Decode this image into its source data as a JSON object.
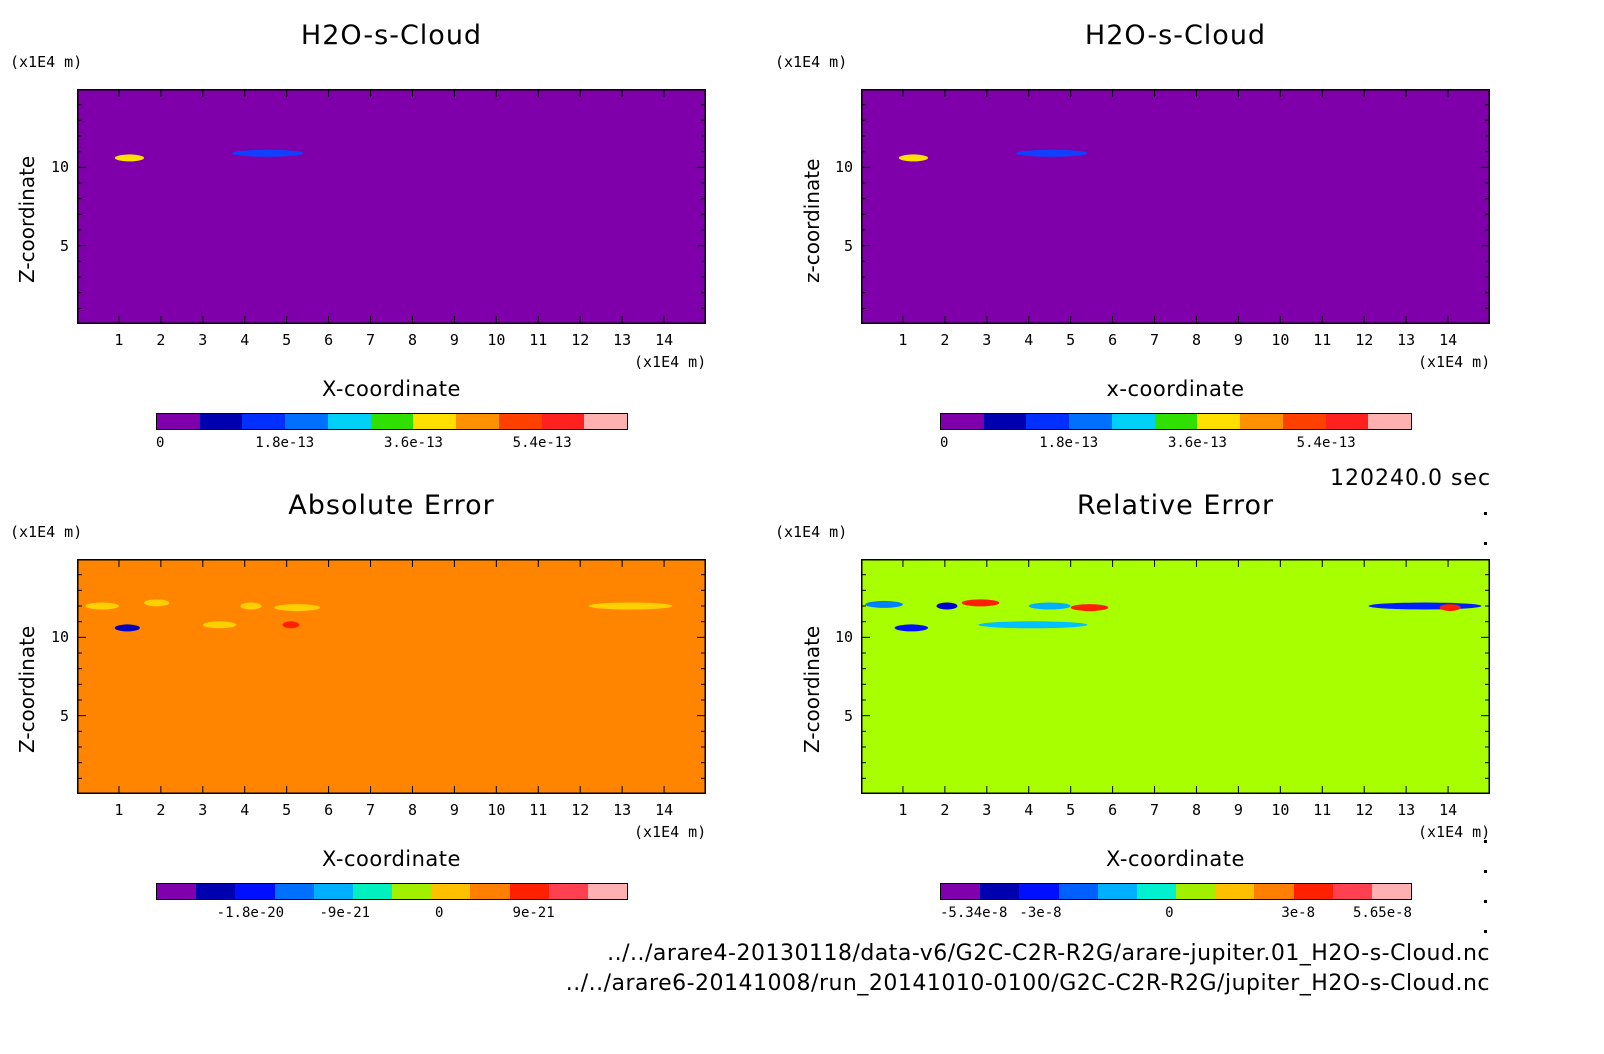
{
  "time_label": "120240.0 sec",
  "files": [
    "../../arare4-20130118/data-v6/G2C-C2R-R2G/arare-jupiter.01_H2O-s-Cloud.nc",
    "../../arare6-20141008/run_20141010-0100/G2C-C2R-R2G/jupiter_H2O-s-Cloud.nc"
  ],
  "chart_data": [
    {
      "type": "heatmap",
      "title": "H2O-s-Cloud",
      "xlabel": "X-coordinate",
      "ylabel": "Z-coordinate",
      "x_unit": "(x1E4 m)",
      "y_unit": "(x1E4 m)",
      "xlim": [
        0,
        15
      ],
      "ylim": [
        0,
        15
      ],
      "xticks": [
        "1",
        "2",
        "3",
        "4",
        "5",
        "6",
        "7",
        "8",
        "9",
        "10",
        "11",
        "12",
        "13",
        "14"
      ],
      "yticks": [
        "5",
        "10"
      ],
      "background_color": "#7f00aa",
      "features": [
        {
          "x_range": [
            0.9,
            1.6
          ],
          "z": 10.6,
          "peak_color": "#ffe000"
        },
        {
          "x_range": [
            3.7,
            5.4
          ],
          "z": 10.9,
          "peak_color": "#1040ff"
        }
      ],
      "colorbar": {
        "colors": [
          "#7f00aa",
          "#0000b0",
          "#0030ff",
          "#0070ff",
          "#00d0f8",
          "#30e000",
          "#ffe000",
          "#ff9000",
          "#ff4000",
          "#ff2020",
          "#ffb0b0"
        ],
        "labels": [
          "0",
          "1.8e-13",
          "3.6e-13",
          "5.4e-13"
        ],
        "label_values": [
          0,
          1.8e-13,
          3.6e-13,
          5.4e-13
        ],
        "range": [
          0,
          6.6e-13
        ]
      }
    },
    {
      "type": "heatmap",
      "title": "H2O-s-Cloud",
      "xlabel": "x-coordinate",
      "ylabel": "z-coordinate",
      "x_unit": "(x1E4 m)",
      "y_unit": "(x1E4 m)",
      "xlim": [
        0,
        15
      ],
      "ylim": [
        0,
        15
      ],
      "xticks": [
        "1",
        "2",
        "3",
        "4",
        "5",
        "6",
        "7",
        "8",
        "9",
        "10",
        "11",
        "12",
        "13",
        "14"
      ],
      "yticks": [
        "5",
        "10"
      ],
      "background_color": "#7f00aa",
      "features": [
        {
          "x_range": [
            0.9,
            1.6
          ],
          "z": 10.6,
          "peak_color": "#ffe000"
        },
        {
          "x_range": [
            3.7,
            5.4
          ],
          "z": 10.9,
          "peak_color": "#1040ff"
        }
      ],
      "colorbar": {
        "colors": [
          "#7f00aa",
          "#0000b0",
          "#0030ff",
          "#0070ff",
          "#00d0f8",
          "#30e000",
          "#ffe000",
          "#ff9000",
          "#ff4000",
          "#ff2020",
          "#ffb0b0"
        ],
        "labels": [
          "0",
          "1.8e-13",
          "3.6e-13",
          "5.4e-13"
        ],
        "label_values": [
          0,
          1.8e-13,
          3.6e-13,
          5.4e-13
        ],
        "range": [
          0,
          6.6e-13
        ]
      }
    },
    {
      "type": "heatmap",
      "title": "Absolute Error",
      "xlabel": "X-coordinate",
      "ylabel": "Z-coordinate",
      "x_unit": "(x1E4 m)",
      "y_unit": "(x1E4 m)",
      "xlim": [
        0,
        15
      ],
      "ylim": [
        0,
        15
      ],
      "xticks": [
        "1",
        "2",
        "3",
        "4",
        "5",
        "6",
        "7",
        "8",
        "9",
        "10",
        "11",
        "12",
        "13",
        "14"
      ],
      "yticks": [
        "5",
        "10"
      ],
      "background_color": "#ff8400",
      "features": [
        {
          "x_range": [
            0.2,
            1.0
          ],
          "z": 12.0,
          "peak_color": "#ffd000"
        },
        {
          "x_range": [
            1.6,
            2.2
          ],
          "z": 12.2,
          "peak_color": "#ffd000"
        },
        {
          "x_range": [
            3.9,
            4.4
          ],
          "z": 12.0,
          "peak_color": "#ffd000"
        },
        {
          "x_range": [
            4.7,
            5.8
          ],
          "z": 11.9,
          "peak_color": "#ffd000"
        },
        {
          "x_range": [
            0.9,
            1.5
          ],
          "z": 10.6,
          "peak_color": "#0000c0"
        },
        {
          "x_range": [
            3.0,
            3.8
          ],
          "z": 10.8,
          "peak_color": "#ffd000"
        },
        {
          "x_range": [
            12.2,
            14.2
          ],
          "z": 12.0,
          "peak_color": "#ffd000"
        },
        {
          "x_range": [
            4.9,
            5.3
          ],
          "z": 10.8,
          "peak_color": "#ff2000"
        }
      ],
      "colorbar": {
        "colors": [
          "#7f00aa",
          "#0000b0",
          "#0010ff",
          "#0070ff",
          "#00b0ff",
          "#00f0c0",
          "#a0f000",
          "#ffc000",
          "#ff8000",
          "#ff2000",
          "#ff4050",
          "#ffb0b0"
        ],
        "labels": [
          "-1.8e-20",
          "-9e-21",
          "0",
          "9e-21"
        ],
        "label_values": [
          -1.8e-20,
          -9e-21,
          0,
          9e-21
        ],
        "range": [
          -2.7e-20,
          1.8e-20
        ]
      }
    },
    {
      "type": "heatmap",
      "title": "Relative Error",
      "xlabel": "X-coordinate",
      "ylabel": "Z-coordinate",
      "x_unit": "(x1E4 m)",
      "y_unit": "(x1E4 m)",
      "xlim": [
        0,
        15
      ],
      "ylim": [
        0,
        15
      ],
      "xticks": [
        "1",
        "2",
        "3",
        "4",
        "5",
        "6",
        "7",
        "8",
        "9",
        "10",
        "11",
        "12",
        "13",
        "14"
      ],
      "yticks": [
        "5",
        "10"
      ],
      "background_color": "#a8ff00",
      "features": [
        {
          "x_range": [
            0.1,
            1.0
          ],
          "z": 12.1,
          "peak_color": "#0080ff"
        },
        {
          "x_range": [
            1.8,
            2.3
          ],
          "z": 12.0,
          "peak_color": "#0000d0"
        },
        {
          "x_range": [
            2.4,
            3.3
          ],
          "z": 12.2,
          "peak_color": "#ff2000"
        },
        {
          "x_range": [
            4.0,
            5.0
          ],
          "z": 12.0,
          "peak_color": "#00b0ff"
        },
        {
          "x_range": [
            5.0,
            5.9
          ],
          "z": 11.9,
          "peak_color": "#ff2000"
        },
        {
          "x_range": [
            0.8,
            1.6
          ],
          "z": 10.6,
          "peak_color": "#0010ff"
        },
        {
          "x_range": [
            2.8,
            5.4
          ],
          "z": 10.8,
          "peak_color": "#00c0ff"
        },
        {
          "x_range": [
            12.1,
            14.8
          ],
          "z": 12.0,
          "peak_color": "#0020ff"
        },
        {
          "x_range": [
            13.8,
            14.3
          ],
          "z": 11.9,
          "peak_color": "#ff2000"
        }
      ],
      "colorbar": {
        "colors": [
          "#7f00aa",
          "#0000b0",
          "#0010ff",
          "#0060ff",
          "#00b0ff",
          "#00f0d0",
          "#a0f000",
          "#ffc000",
          "#ff8000",
          "#ff2000",
          "#ff4050",
          "#ffb0b0"
        ],
        "labels": [
          "-5.34e-8",
          "-3e-8",
          "0",
          "3e-8",
          "5.65e-8"
        ],
        "label_values": [
          -5.34e-08,
          -3e-08,
          0,
          3e-08,
          5.65e-08
        ],
        "range": [
          -5.34e-08,
          5.65e-08
        ]
      }
    }
  ]
}
